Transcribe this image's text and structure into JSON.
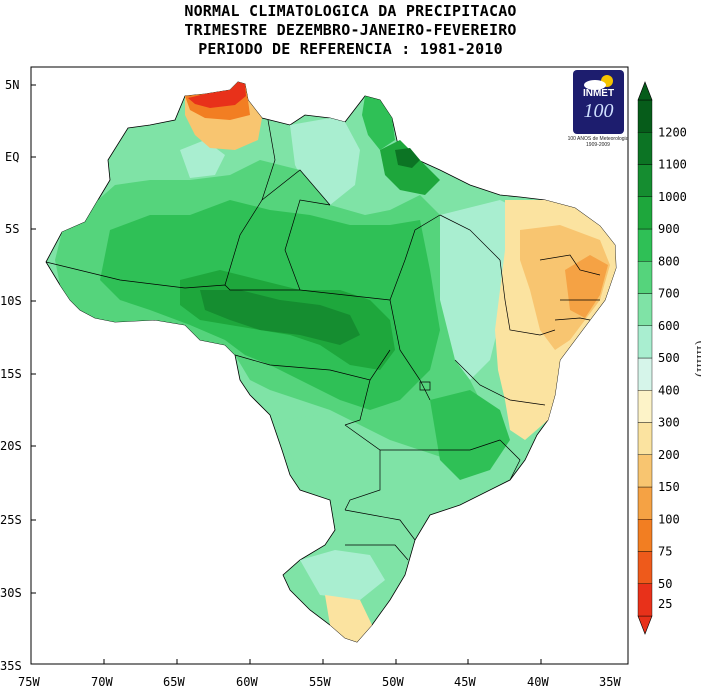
{
  "title": {
    "line1": "NORMAL CLIMATOLOGICA DA PRECIPITACAO",
    "line2": "TRIMESTRE DEZEMBRO-JANEIRO-FEVEREIRO",
    "line3": "PERIODO DE REFERENCIA : 1981-2010"
  },
  "axes": {
    "lat_labels": [
      "5N",
      "EQ",
      "5S",
      "10S",
      "15S",
      "20S",
      "25S",
      "30S",
      "35S"
    ],
    "lon_labels": [
      "75W",
      "70W",
      "65W",
      "60W",
      "55W",
      "50W",
      "45W",
      "40W",
      "35W"
    ]
  },
  "colorbar": {
    "unit": "(mm)",
    "levels": [
      "25",
      "50",
      "75",
      "100",
      "150",
      "200",
      "300",
      "400",
      "500",
      "600",
      "700",
      "800",
      "900",
      "1000",
      "1100",
      "1200"
    ],
    "colors": [
      "#e8311a",
      "#ee5a1b",
      "#f27e22",
      "#f5a244",
      "#f8c570",
      "#fbe3a0",
      "#fdf3c8",
      "#d6f5ea",
      "#a9eed0",
      "#7fe3a6",
      "#55d47c",
      "#2fc056",
      "#1ea73c",
      "#158d30",
      "#0c7424",
      "#065c1a"
    ]
  },
  "logo": {
    "name": "INMET",
    "number": "100",
    "caption": "100 ANOS de Meteorologia 1909-2009"
  }
}
